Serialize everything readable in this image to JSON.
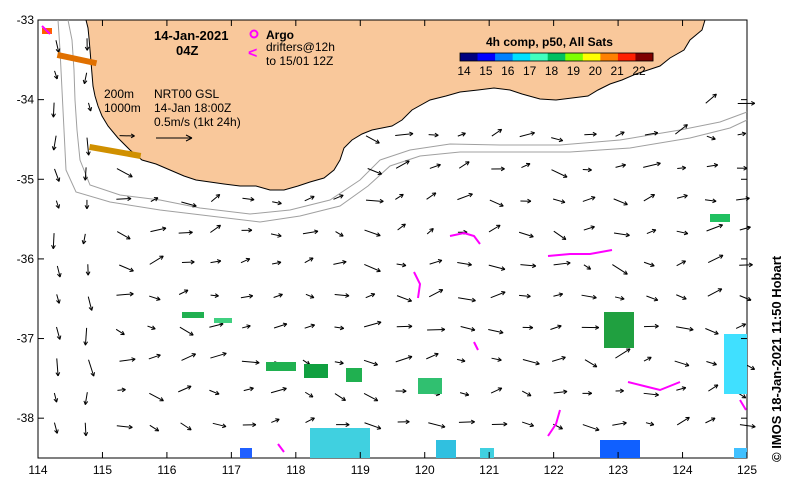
{
  "title": {
    "date": "14-Jan-2021",
    "time": "04Z"
  },
  "legend": {
    "argo_label": "Argo",
    "drifter_line1": "drifters@12h",
    "drifter_line2": "to 15/01 12Z",
    "drifter_symbol": "<"
  },
  "colorbar": {
    "title": "4h comp, p50, All Sats",
    "ticks": [
      "14",
      "15",
      "16",
      "17",
      "18",
      "19",
      "20",
      "21",
      "22"
    ],
    "colors": [
      "#00007f",
      "#0000ff",
      "#0080ff",
      "#00e0ff",
      "#40ffbf",
      "#00c060",
      "#7fff00",
      "#ffff00",
      "#ff8000",
      "#ff2000",
      "#800000"
    ]
  },
  "info": {
    "contour1": "200m",
    "contour2": "1000m",
    "product": "NRT00 GSL",
    "valid": "14-Jan 18:00Z",
    "scale": "0.5m/s (1kt 24h)"
  },
  "credit": "©  IMOS 18-Jan-2021 11:50 Hobart",
  "axes": {
    "x_ticks": [
      "114",
      "115",
      "116",
      "117",
      "118",
      "119",
      "120",
      "121",
      "122",
      "123",
      "124",
      "125"
    ],
    "y_ticks": [
      "-33",
      "-34",
      "-35",
      "-36",
      "-37",
      "-38"
    ],
    "lon_range": [
      114,
      125
    ],
    "lat_range": [
      -33,
      -38.5
    ]
  },
  "colors": {
    "land": "#f9c89b",
    "isobath": "#a0a0a0",
    "argo": "#ff00ff",
    "drifter": "#ff00ff"
  }
}
